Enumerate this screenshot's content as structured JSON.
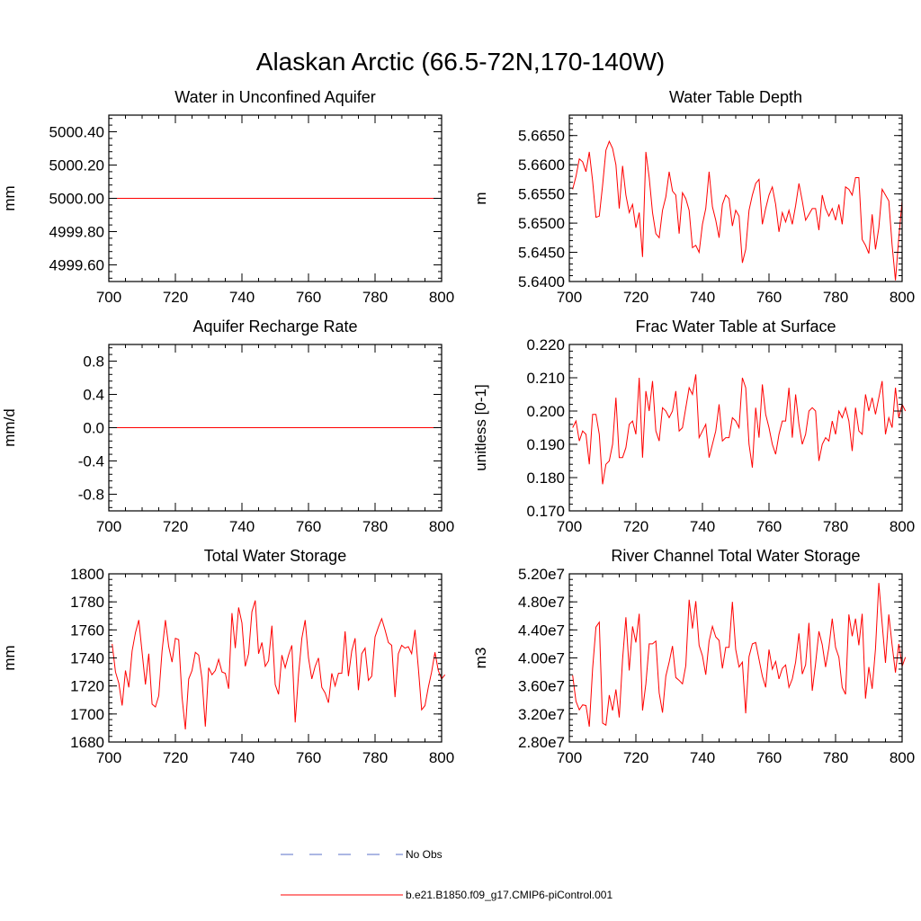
{
  "figure_title": "Alaskan Arctic (66.5-72N,170-140W)",
  "legend": [
    {
      "label": "No Obs",
      "style": "dashed",
      "color": "#5a6fc8"
    },
    {
      "label": "b.e21.B1850.f09_g17.CMIP6-piControl.001",
      "style": "solid",
      "color": "#ff0000"
    }
  ],
  "series_color": "#ff0000",
  "chart_data": [
    {
      "type": "line",
      "title": "Water in Unconfined Aquifer",
      "ylabel": "mm",
      "xlim": [
        700,
        800
      ],
      "ylim": [
        4999.5,
        5000.5
      ],
      "xticks": [
        700,
        720,
        740,
        760,
        780,
        800
      ],
      "xtick_labels": [
        "700",
        "720",
        "740",
        "760",
        "780",
        "800"
      ],
      "yticks": [
        4999.6,
        4999.8,
        5000.0,
        5000.2,
        5000.4
      ],
      "ytick_labels": [
        "4999.60",
        "4999.80",
        "5000.00",
        "5000.20",
        "5000.40"
      ],
      "x_start": 700,
      "values": [
        5000,
        5000,
        5000,
        5000,
        5000,
        5000,
        5000,
        5000,
        5000,
        5000,
        5000,
        5000,
        5000,
        5000,
        5000,
        5000,
        5000,
        5000,
        5000,
        5000,
        5000,
        5000,
        5000,
        5000,
        5000,
        5000,
        5000,
        5000,
        5000,
        5000,
        5000,
        5000,
        5000,
        5000,
        5000,
        5000,
        5000,
        5000,
        5000,
        5000,
        5000,
        5000,
        5000,
        5000,
        5000,
        5000,
        5000,
        5000,
        5000,
        5000,
        5000,
        5000,
        5000,
        5000,
        5000,
        5000,
        5000,
        5000,
        5000,
        5000,
        5000,
        5000,
        5000,
        5000,
        5000,
        5000,
        5000,
        5000,
        5000,
        5000,
        5000,
        5000,
        5000,
        5000,
        5000,
        5000,
        5000,
        5000,
        5000,
        5000,
        5000,
        5000,
        5000,
        5000,
        5000,
        5000,
        5000,
        5000,
        5000,
        5000,
        5000,
        5000,
        5000,
        5000,
        5000,
        5000,
        5000,
        5000,
        5000,
        5000,
        5000
      ]
    },
    {
      "type": "line",
      "title": "Water Table Depth",
      "ylabel": "m",
      "xlim": [
        700,
        800
      ],
      "ylim": [
        5.64,
        5.6685
      ],
      "xticks": [
        700,
        720,
        740,
        760,
        780,
        800
      ],
      "xtick_labels": [
        "700",
        "720",
        "740",
        "760",
        "780",
        "800"
      ],
      "yticks": [
        5.64,
        5.645,
        5.65,
        5.655,
        5.66,
        5.665
      ],
      "ytick_labels": [
        "5.6400",
        "5.6450",
        "5.6500",
        "5.6550",
        "5.6600",
        "5.6650"
      ],
      "x_start": 701,
      "values": [
        5.6558,
        5.658,
        5.661,
        5.6605,
        5.6588,
        5.6622,
        5.6572,
        5.651,
        5.6512,
        5.6565,
        5.6625,
        5.664,
        5.6628,
        5.66,
        5.6525,
        5.6598,
        5.6548,
        5.6518,
        5.6532,
        5.6492,
        5.6518,
        5.6442,
        5.6622,
        5.6578,
        5.6518,
        5.6482,
        5.6475,
        5.6522,
        5.6545,
        5.6588,
        5.6555,
        5.6548,
        5.6482,
        5.6552,
        5.6542,
        5.6522,
        5.6458,
        5.6462,
        5.645,
        5.6498,
        5.6525,
        5.6588,
        5.6528,
        5.6505,
        5.6475,
        5.6532,
        5.6548,
        5.6542,
        5.6495,
        5.6522,
        5.6512,
        5.6432,
        5.6455,
        5.6522,
        5.6548,
        5.6568,
        5.6575,
        5.6498,
        5.6525,
        5.6548,
        5.6562,
        5.6532,
        5.6485,
        5.6518,
        5.6502,
        5.6522,
        5.6498,
        5.653,
        5.6568,
        5.6538,
        5.6505,
        5.6515,
        5.6525,
        5.6525,
        5.6488,
        5.6548,
        5.6525,
        5.6512,
        5.6525,
        5.6505,
        5.6532,
        5.6498,
        5.6562,
        5.6558,
        5.6548,
        5.6578,
        5.6578,
        5.6472,
        5.6462,
        5.6448,
        5.6515,
        5.6455,
        5.6492,
        5.6558,
        5.6548,
        5.6538,
        5.6462,
        5.6402,
        5.6475,
        5.6538
      ]
    },
    {
      "type": "line",
      "title": "Aquifer Recharge Rate",
      "ylabel": "mm/d",
      "xlim": [
        700,
        800
      ],
      "ylim": [
        -1.0,
        1.0
      ],
      "xticks": [
        700,
        720,
        740,
        760,
        780,
        800
      ],
      "xtick_labels": [
        "700",
        "720",
        "740",
        "760",
        "780",
        "800"
      ],
      "yticks": [
        -0.8,
        -0.4,
        0.0,
        0.4,
        0.8
      ],
      "ytick_labels": [
        "-0.8",
        "-0.4",
        "0.0",
        "0.4",
        "0.8"
      ],
      "x_start": 700,
      "values": [
        0,
        0,
        0,
        0,
        0,
        0,
        0,
        0,
        0,
        0,
        0,
        0,
        0,
        0,
        0,
        0,
        0,
        0,
        0,
        0,
        0,
        0,
        0,
        0,
        0,
        0,
        0,
        0,
        0,
        0,
        0,
        0,
        0,
        0,
        0,
        0,
        0,
        0,
        0,
        0,
        0,
        0,
        0,
        0,
        0,
        0,
        0,
        0,
        0,
        0,
        0,
        0,
        0,
        0,
        0,
        0,
        0,
        0,
        0,
        0,
        0,
        0,
        0,
        0,
        0,
        0,
        0,
        0,
        0,
        0,
        0,
        0,
        0,
        0,
        0,
        0,
        0,
        0,
        0,
        0,
        0,
        0,
        0,
        0,
        0,
        0,
        0,
        0,
        0,
        0,
        0,
        0,
        0,
        0,
        0,
        0,
        0,
        0,
        0,
        0,
        0
      ]
    },
    {
      "type": "line",
      "title": "Frac Water Table at Surface",
      "ylabel": "unitless [0-1]",
      "xlim": [
        700,
        800
      ],
      "ylim": [
        0.17,
        0.22
      ],
      "xticks": [
        700,
        720,
        740,
        760,
        780,
        800
      ],
      "xtick_labels": [
        "700",
        "720",
        "740",
        "760",
        "780",
        "800"
      ],
      "yticks": [
        0.17,
        0.18,
        0.19,
        0.2,
        0.21,
        0.22
      ],
      "ytick_labels": [
        "0.170",
        "0.180",
        "0.190",
        "0.200",
        "0.210",
        "0.220"
      ],
      "x_start": 701,
      "values": [
        0.195,
        0.197,
        0.191,
        0.194,
        0.193,
        0.184,
        0.199,
        0.199,
        0.193,
        0.178,
        0.184,
        0.185,
        0.19,
        0.204,
        0.186,
        0.186,
        0.189,
        0.196,
        0.197,
        0.193,
        0.21,
        0.186,
        0.206,
        0.2,
        0.209,
        0.194,
        0.191,
        0.201,
        0.2,
        0.198,
        0.2,
        0.206,
        0.194,
        0.195,
        0.201,
        0.207,
        0.205,
        0.211,
        0.192,
        0.194,
        0.196,
        0.186,
        0.19,
        0.194,
        0.202,
        0.191,
        0.192,
        0.192,
        0.198,
        0.197,
        0.195,
        0.21,
        0.207,
        0.19,
        0.183,
        0.201,
        0.192,
        0.208,
        0.199,
        0.195,
        0.19,
        0.187,
        0.193,
        0.197,
        0.197,
        0.207,
        0.192,
        0.205,
        0.196,
        0.19,
        0.193,
        0.2,
        0.201,
        0.2,
        0.185,
        0.19,
        0.192,
        0.191,
        0.197,
        0.193,
        0.2,
        0.198,
        0.201,
        0.197,
        0.188,
        0.201,
        0.194,
        0.193,
        0.205,
        0.2,
        0.204,
        0.199,
        0.204,
        0.209,
        0.193,
        0.198,
        0.195,
        0.207,
        0.198,
        0.202,
        0.2
      ]
    },
    {
      "type": "line",
      "title": "Total Water Storage",
      "ylabel": "mm",
      "xlim": [
        700,
        800
      ],
      "ylim": [
        1680,
        1800
      ],
      "xticks": [
        700,
        720,
        740,
        760,
        780,
        800
      ],
      "xtick_labels": [
        "700",
        "720",
        "740",
        "760",
        "780",
        "800"
      ],
      "yticks": [
        1680,
        1700,
        1720,
        1740,
        1760,
        1780,
        1800
      ],
      "ytick_labels": [
        "1680",
        "1700",
        "1720",
        "1740",
        "1760",
        "1780",
        "1800"
      ],
      "x_start": 701,
      "values": [
        1750,
        1730,
        1722,
        1706,
        1731,
        1719,
        1745,
        1758,
        1767,
        1744,
        1721,
        1743,
        1707,
        1705,
        1713,
        1745,
        1767,
        1748,
        1737,
        1754,
        1753,
        1712,
        1689,
        1725,
        1731,
        1744,
        1742,
        1725,
        1691,
        1733,
        1728,
        1731,
        1739,
        1730,
        1729,
        1718,
        1772,
        1747,
        1776,
        1765,
        1734,
        1743,
        1773,
        1781,
        1743,
        1751,
        1734,
        1738,
        1763,
        1721,
        1714,
        1742,
        1733,
        1742,
        1749,
        1694,
        1728,
        1754,
        1767,
        1740,
        1725,
        1734,
        1740,
        1719,
        1715,
        1708,
        1729,
        1720,
        1729,
        1729,
        1759,
        1727,
        1745,
        1754,
        1717,
        1743,
        1747,
        1724,
        1727,
        1755,
        1762,
        1768,
        1760,
        1751,
        1749,
        1712,
        1743,
        1749,
        1747,
        1748,
        1743,
        1760,
        1733,
        1703,
        1706,
        1719,
        1730,
        1744,
        1731,
        1725,
        1728
      ]
    },
    {
      "type": "line",
      "title": "River Channel Total Water Storage",
      "ylabel": "m3",
      "xlim": [
        700,
        800
      ],
      "ylim": [
        28000000,
        52000000
      ],
      "xticks": [
        700,
        720,
        740,
        760,
        780,
        800
      ],
      "xtick_labels": [
        "700",
        "720",
        "740",
        "760",
        "780",
        "800"
      ],
      "yticks": [
        28000000,
        32000000,
        36000000,
        40000000,
        44000000,
        48000000,
        52000000
      ],
      "ytick_labels": [
        "2.80e7",
        "3.20e7",
        "3.60e7",
        "4.00e7",
        "4.40e7",
        "4.80e7",
        "5.20e7"
      ],
      "x_start": 701,
      "values": [
        37500000,
        33800000,
        32600000,
        33300000,
        33200000,
        30200000,
        38500000,
        44400000,
        45100000,
        30700000,
        30400000,
        34700000,
        32500000,
        35500000,
        31500000,
        39800000,
        45800000,
        38200000,
        44500000,
        42200000,
        46300000,
        32500000,
        36300000,
        42000000,
        42000000,
        42400000,
        35000000,
        32200000,
        37400000,
        39400000,
        41700000,
        37200000,
        36800000,
        36300000,
        38900000,
        48300000,
        44200000,
        48100000,
        41800000,
        40300000,
        37600000,
        42400000,
        44500000,
        43000000,
        42500000,
        38500000,
        41500000,
        41500000,
        48000000,
        41200000,
        38700000,
        39400000,
        32100000,
        40200000,
        42000000,
        42200000,
        39800000,
        37400000,
        35800000,
        41200000,
        38400000,
        39500000,
        37000000,
        38500000,
        39000000,
        35800000,
        37000000,
        39400000,
        43500000,
        37700000,
        39000000,
        45000000,
        35300000,
        39200000,
        43800000,
        41900000,
        38700000,
        41500000,
        45600000,
        41500000,
        40100000,
        35800000,
        34800000,
        46200000,
        43100000,
        45600000,
        41800000,
        46300000,
        34200000,
        38700000,
        35600000,
        41300000,
        50700000,
        44900000,
        39300000,
        46200000,
        41800000,
        37900000,
        42000000,
        38800000,
        40100000
      ]
    }
  ]
}
